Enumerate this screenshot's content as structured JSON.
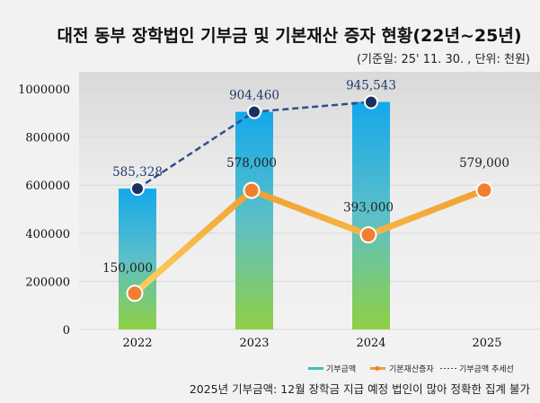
{
  "title": "대전 동부 장학법인 기부금 및 기본재산 증자 현황(22년~25년)",
  "subtitle": "(기준일: 25' 11. 30. , 단위: 천원)",
  "note": "2025년 기부금액: 12월 장학금 지급 예정 법인이 많아 정확한 집계 불가",
  "chart_data": {
    "type": "bar",
    "categories": [
      "2022",
      "2023",
      "2024",
      "2025"
    ],
    "ylim": [
      0,
      1000000
    ],
    "yticks": [
      "0",
      "200000",
      "400000",
      "600000",
      "800000",
      "1000000"
    ],
    "grid": true,
    "legend_placement": "bottom-right",
    "series": [
      {
        "name": "기부금액",
        "kind": "bar",
        "values": [
          585328,
          904460,
          945543,
          null
        ],
        "color": "#1aa9e6",
        "color_bottom": "#8fd04a"
      },
      {
        "name": "기본재산증자",
        "kind": "line",
        "values": [
          150000,
          578000,
          393000,
          579000
        ],
        "labels": [
          "150,000",
          "578,000",
          "393,000",
          "579,000"
        ],
        "color": "#f0a030",
        "marker_color": "#f08030"
      },
      {
        "name": "기부금액 추세선",
        "kind": "dashed-line",
        "values": [
          585328,
          904460,
          945543,
          null
        ],
        "labels": [
          "585,328",
          "904,460",
          "945,543",
          ""
        ],
        "color": "#2f4f8f",
        "marker_color": "#1a3060"
      }
    ]
  }
}
